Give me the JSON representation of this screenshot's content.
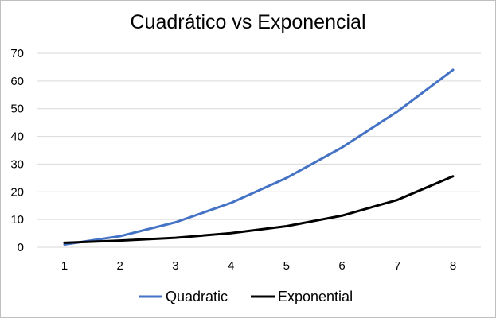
{
  "chart_data": {
    "type": "line",
    "title": "Cuadrático vs Exponencial",
    "x": [
      1,
      2,
      3,
      4,
      5,
      6,
      7,
      8
    ],
    "series": [
      {
        "name": "Quadratic",
        "color": "#4472c4",
        "values": [
          1,
          4,
          9,
          16,
          25,
          36,
          49,
          64
        ]
      },
      {
        "name": "Exponential",
        "color": "#000000",
        "values": [
          1.6,
          2.4,
          3.4,
          5.1,
          7.6,
          11.4,
          17.1,
          25.6
        ]
      }
    ],
    "ylim": [
      0,
      70
    ],
    "yticks": [
      0,
      10,
      20,
      30,
      40,
      50,
      60,
      70
    ],
    "grid": true,
    "legend": "bottom"
  }
}
